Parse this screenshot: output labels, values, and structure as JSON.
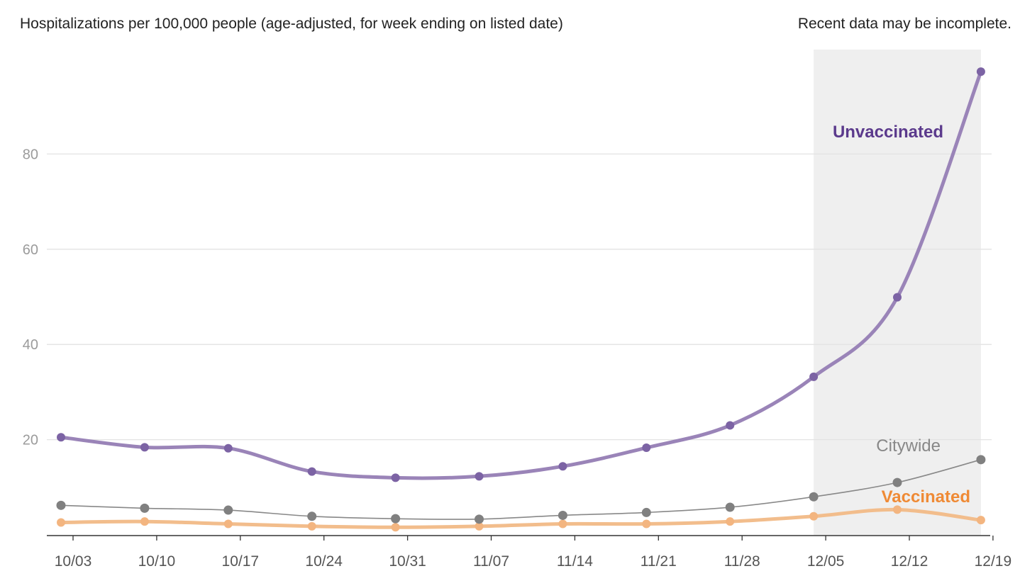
{
  "chart_data": {
    "type": "line",
    "title": "Hospitalizations per 100,000 people (age-adjusted, for week ending on listed date)",
    "note": "Recent data may be incomplete.",
    "x_tick_labels": [
      "10/03",
      "10/10",
      "10/17",
      "10/24",
      "10/31",
      "11/07",
      "11/14",
      "11/21",
      "11/28",
      "12/05",
      "12/12",
      "12/19"
    ],
    "x_dates": [
      "10/02",
      "10/09",
      "10/16",
      "10/23",
      "10/30",
      "11/06",
      "11/13",
      "11/20",
      "11/27",
      "12/04",
      "12/11",
      "12/18"
    ],
    "y_ticks": [
      20,
      40,
      60,
      80
    ],
    "ylim": [
      0,
      101
    ],
    "shaded_range": [
      "12/04",
      "12/18"
    ],
    "grid": true,
    "series": [
      {
        "name": "Unvaccinated",
        "color": "#9a84b8",
        "point_color": "#7c63a4",
        "label_color": "#5b3a8c",
        "label_bold": true,
        "values": [
          20.5,
          18.4,
          18.2,
          13.3,
          12.0,
          12.3,
          14.4,
          18.3,
          23.0,
          33.2,
          49.9,
          97.3
        ]
      },
      {
        "name": "Citywide",
        "color": "#888888",
        "point_color": "#808080",
        "label_color": "#888888",
        "label_bold": false,
        "values": [
          6.2,
          5.6,
          5.2,
          3.9,
          3.4,
          3.3,
          4.1,
          4.7,
          5.8,
          8.0,
          11.0,
          15.8
        ]
      },
      {
        "name": "Vaccinated",
        "color": "#f2bd8c",
        "point_color": "#f3b580",
        "label_color": "#ef8a35",
        "label_bold": true,
        "values": [
          2.6,
          2.8,
          2.3,
          1.8,
          1.6,
          1.8,
          2.3,
          2.3,
          2.8,
          3.9,
          5.3,
          3.1
        ]
      }
    ]
  }
}
